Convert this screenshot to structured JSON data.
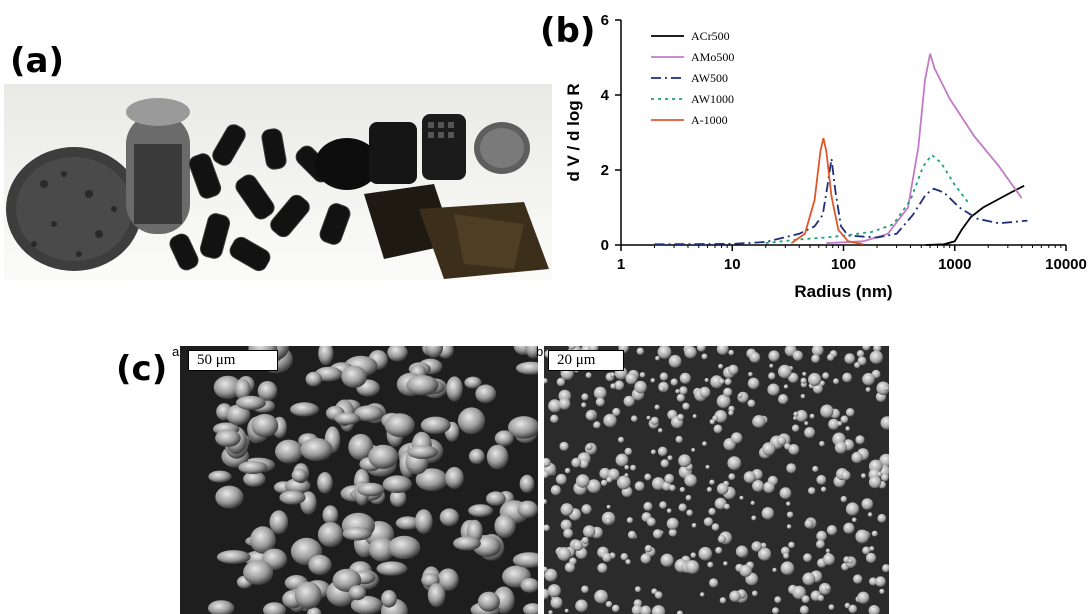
{
  "panels": {
    "a": {
      "label": "(a)"
    },
    "b": {
      "label": "(b)"
    },
    "c": {
      "label": "(c)",
      "micrograph_a": {
        "letter": "a",
        "scale_bar": "50 μm"
      },
      "micrograph_b": {
        "letter": "b",
        "scale_bar": "20 μm"
      }
    }
  },
  "chart_data": {
    "type": "line",
    "xlabel": "Radius (nm)",
    "ylabel": "d V / d log R",
    "x_scale": "log",
    "xlim": [
      1,
      10000
    ],
    "ylim": [
      0,
      6
    ],
    "x_ticks": [
      1,
      10,
      100,
      1000,
      10000
    ],
    "x_tick_labels": [
      "1",
      "10",
      "100",
      "1000",
      "10000"
    ],
    "y_ticks": [
      0,
      2,
      4,
      6
    ],
    "y_tick_labels": [
      "0",
      "2",
      "4",
      "6"
    ],
    "grid": false,
    "legend_position": "top-left",
    "series": [
      {
        "name": "ACr500",
        "color": "#000000",
        "dash": "solid",
        "points": [
          [
            550,
            0.0
          ],
          [
            800,
            0.02
          ],
          [
            1000,
            0.1
          ],
          [
            1150,
            0.4
          ],
          [
            1400,
            0.75
          ],
          [
            1800,
            1.0
          ],
          [
            2400,
            1.2
          ],
          [
            3200,
            1.4
          ],
          [
            4200,
            1.58
          ]
        ]
      },
      {
        "name": "AMo500",
        "color": "#c27bc7",
        "dash": "solid",
        "points": [
          [
            70,
            0.05
          ],
          [
            150,
            0.1
          ],
          [
            250,
            0.3
          ],
          [
            380,
            1.0
          ],
          [
            470,
            2.6
          ],
          [
            540,
            4.4
          ],
          [
            600,
            5.1
          ],
          [
            660,
            4.7
          ],
          [
            900,
            3.9
          ],
          [
            1500,
            2.9
          ],
          [
            2500,
            2.1
          ],
          [
            4000,
            1.25
          ]
        ]
      },
      {
        "name": "AW500",
        "color": "#1f2d7a",
        "dash": "dashdot",
        "points": [
          [
            2,
            0.02
          ],
          [
            10,
            0.03
          ],
          [
            20,
            0.08
          ],
          [
            40,
            0.3
          ],
          [
            55,
            0.5
          ],
          [
            65,
            0.8
          ],
          [
            72,
            1.6
          ],
          [
            78,
            2.3
          ],
          [
            85,
            1.4
          ],
          [
            95,
            0.5
          ],
          [
            110,
            0.25
          ],
          [
            200,
            0.2
          ],
          [
            300,
            0.3
          ],
          [
            420,
            0.8
          ],
          [
            550,
            1.35
          ],
          [
            650,
            1.5
          ],
          [
            800,
            1.4
          ],
          [
            1100,
            1.0
          ],
          [
            1600,
            0.7
          ],
          [
            2500,
            0.58
          ],
          [
            4500,
            0.65
          ]
        ]
      },
      {
        "name": "AW1000",
        "color": "#1aa37a",
        "dash": "dotted",
        "points": [
          [
            20,
            0.05
          ],
          [
            40,
            0.15
          ],
          [
            70,
            0.2
          ],
          [
            100,
            0.25
          ],
          [
            180,
            0.35
          ],
          [
            280,
            0.55
          ],
          [
            400,
            1.2
          ],
          [
            520,
            2.1
          ],
          [
            620,
            2.4
          ],
          [
            750,
            2.2
          ],
          [
            1000,
            1.6
          ],
          [
            1350,
            1.1
          ]
        ]
      },
      {
        "name": "A-1000",
        "color": "#e0582a",
        "dash": "solid",
        "points": [
          [
            34,
            0.05
          ],
          [
            45,
            0.3
          ],
          [
            55,
            1.2
          ],
          [
            62,
            2.5
          ],
          [
            66,
            2.85
          ],
          [
            70,
            2.5
          ],
          [
            78,
            1.3
          ],
          [
            90,
            0.4
          ],
          [
            110,
            0.1
          ],
          [
            150,
            0.02
          ]
        ]
      }
    ]
  }
}
